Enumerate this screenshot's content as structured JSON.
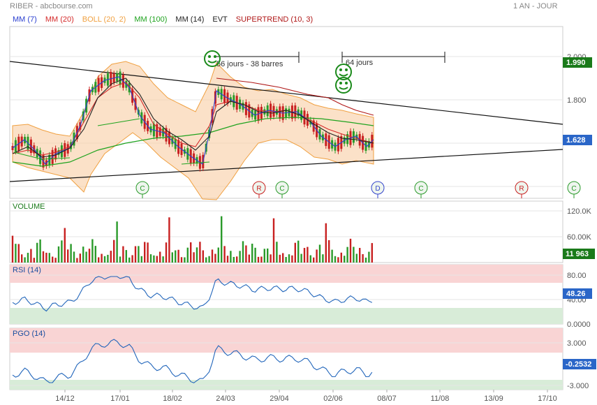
{
  "header": {
    "ticker_source": "RIBER - abcbourse.com",
    "period": "1 AN - JOUR"
  },
  "indicators": [
    {
      "label": "MM (7)",
      "color": "#2a3fd0"
    },
    {
      "label": "MM (20)",
      "color": "#d42a2a"
    },
    {
      "label": "BOLL (20, 2)",
      "color": "#f0a040"
    },
    {
      "label": "MM (100)",
      "color": "#1fa31f"
    },
    {
      "label": "MM (14)",
      "color": "#222222"
    },
    {
      "label": "EVT",
      "color": "#222222"
    },
    {
      "label": "SUPERTREND (10, 3)",
      "color": "#b01818"
    }
  ],
  "annotations": {
    "triangle_text": "56 jours - 38 barres",
    "projection_text": "64 jours"
  },
  "events": [
    "C",
    "C",
    "R",
    "C",
    "D",
    "C",
    "R",
    "C"
  ],
  "price_axis": {
    "ticks": [
      "2.000",
      "1.800",
      "1.600"
    ],
    "last_price": "1.990",
    "current": "1.628"
  },
  "volume": {
    "title": "VOLUME",
    "ticks": [
      "120.0K",
      "60.00K"
    ],
    "current": "11 963"
  },
  "rsi": {
    "title": "RSI (14)",
    "ticks": [
      "80.00",
      "40.00",
      "0.0000"
    ],
    "current": "48.26"
  },
  "pgo": {
    "title": "PGO (14)",
    "ticks": [
      "3.000",
      "-3.000"
    ],
    "current": "-0.2532"
  },
  "x_dates": [
    "14/12",
    "17/01",
    "18/02",
    "24/03",
    "29/04",
    "02/06",
    "08/07",
    "11/08",
    "13/09",
    "17/10"
  ],
  "chart_data": {
    "type": "line",
    "title": "RIBER",
    "x_labels": [
      "14/12",
      "17/01",
      "18/02",
      "24/03",
      "29/04",
      "02/06"
    ],
    "series": [
      {
        "name": "MM (100)",
        "values": [
          1.62,
          1.65,
          1.68,
          1.7,
          1.72,
          1.74
        ]
      },
      {
        "name": "RSI (14)",
        "values": [
          62,
          70,
          45,
          68,
          55,
          48.26
        ]
      },
      {
        "name": "PGO (14)",
        "values": [
          1.0,
          3.2,
          -1.5,
          3.0,
          0.5,
          -0.2532
        ]
      }
    ],
    "price_ylim": [
      1.5,
      2.1
    ],
    "volume_ylim": [
      0,
      140000
    ],
    "rsi_ylim": [
      0,
      100
    ],
    "pgo_ylim": [
      -3.5,
      4
    ]
  }
}
